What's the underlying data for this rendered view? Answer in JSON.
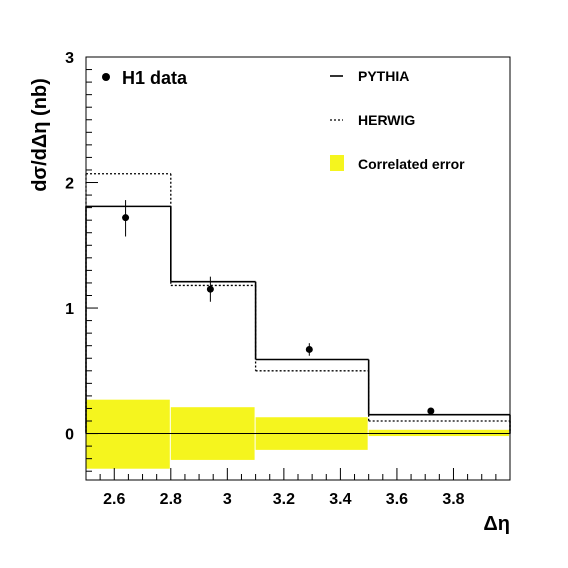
{
  "chart_data": {
    "type": "step",
    "xlabel": "Δη",
    "ylabel": "dσ/dΔη (nb)",
    "xlim": [
      2.5,
      4.0
    ],
    "ylim": [
      -0.37,
      3.0
    ],
    "x_ticks": [
      2.6,
      2.8,
      3.0,
      3.2,
      3.4,
      3.6,
      3.8
    ],
    "x_tick_labels": [
      "2.6",
      "2.8",
      "3",
      "3.2",
      "3.4",
      "3.6",
      "3.8"
    ],
    "y_ticks": [
      0,
      1,
      2,
      3
    ],
    "y_tick_labels": [
      "0",
      "1",
      "2",
      "3"
    ],
    "bin_edges": [
      2.5,
      2.8,
      3.1,
      3.5,
      4.0
    ],
    "series": [
      {
        "name": "H1 data",
        "kind": "points",
        "x": [
          2.64,
          2.94,
          3.29,
          3.72
        ],
        "y": [
          1.72,
          1.15,
          0.67,
          0.18
        ],
        "err_low": [
          0.15,
          0.1,
          0.05,
          0.02
        ],
        "err_high": [
          0.14,
          0.1,
          0.05,
          0.02
        ]
      },
      {
        "name": "PYTHIA",
        "kind": "step",
        "style": "solid",
        "values": [
          1.81,
          1.21,
          0.59,
          0.15
        ]
      },
      {
        "name": "HERWIG",
        "kind": "step",
        "style": "dotted",
        "values": [
          2.07,
          1.18,
          0.5,
          0.1
        ]
      },
      {
        "name": "Correlated error",
        "kind": "band",
        "color": "#f5f51e",
        "low": [
          -0.28,
          -0.21,
          -0.13,
          -0.02
        ],
        "high": [
          0.27,
          0.21,
          0.13,
          0.03
        ]
      }
    ],
    "zero_line": true,
    "legend_placement": "top"
  }
}
